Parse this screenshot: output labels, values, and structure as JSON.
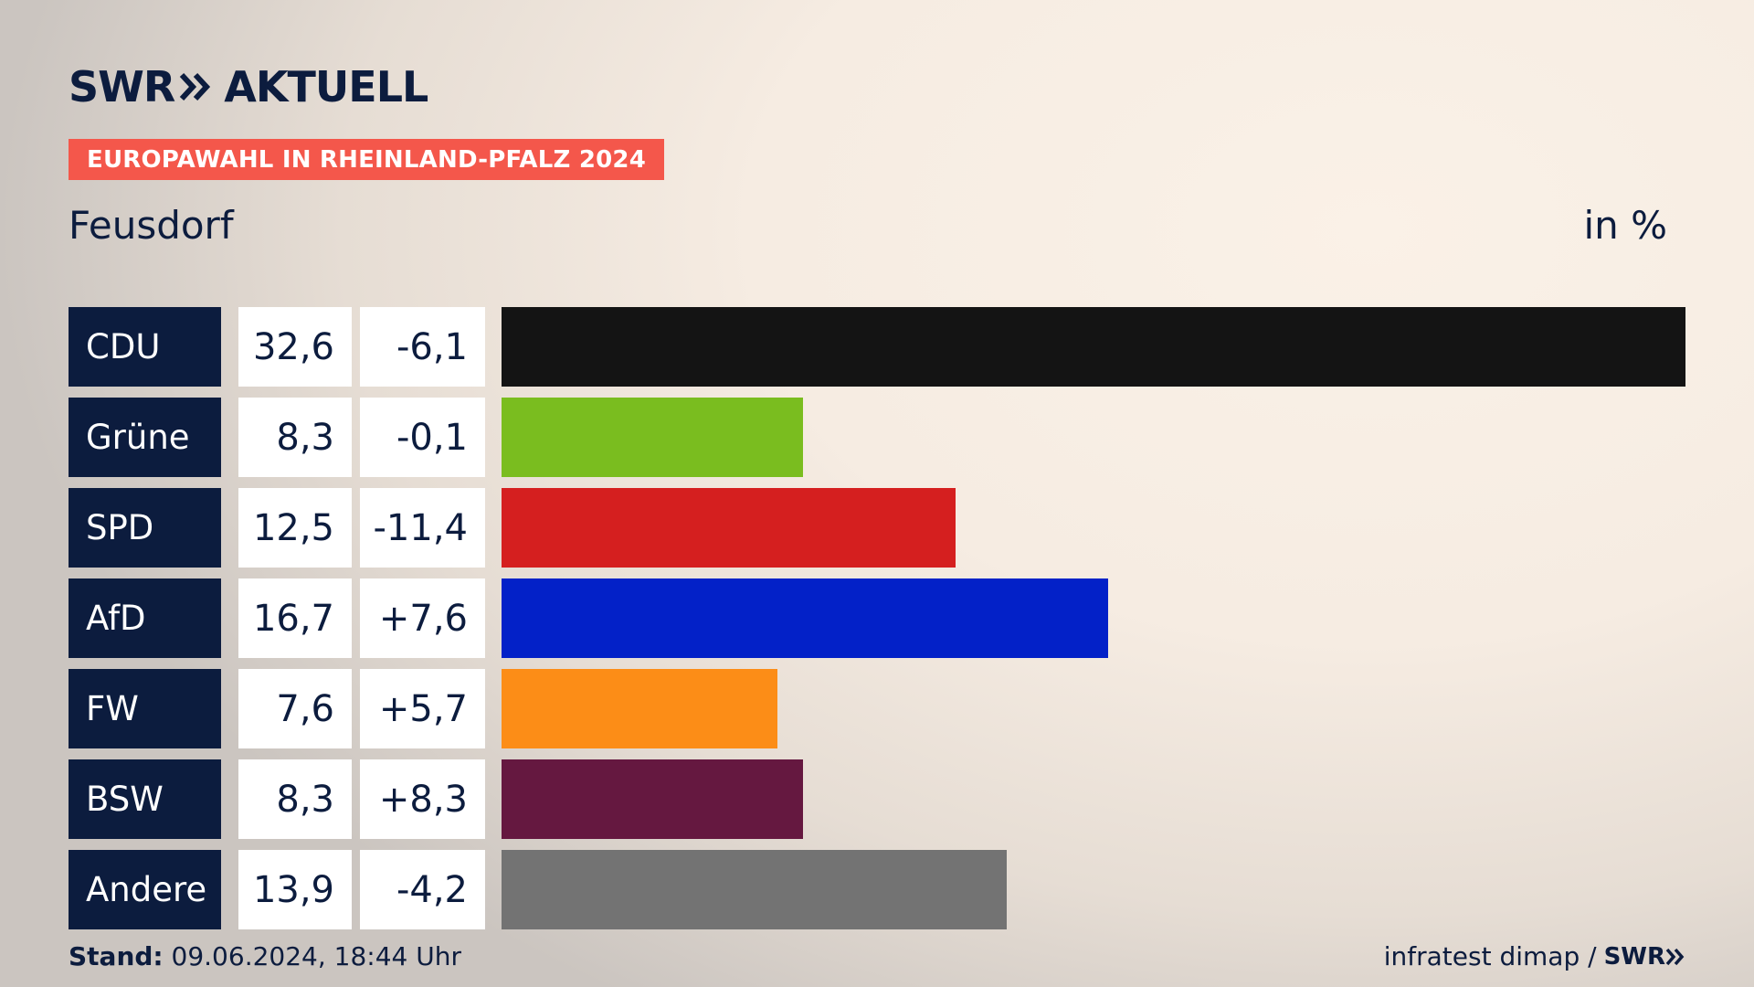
{
  "header": {
    "logo_text_left": "SWR",
    "logo_text_right": "AKTUELL",
    "badge": "EUROPAWAHL IN RHEINLAND-PFALZ 2024",
    "region": "Feusdorf",
    "unit": "in %"
  },
  "footer": {
    "stand_label": "Stand:",
    "stand_value": "09.06.2024, 18:44 Uhr",
    "source": "infratest dimap /",
    "source_logo": "SWR"
  },
  "colors": {
    "navy": "#0c1c3e",
    "badge": "#f4574b"
  },
  "chart_data": {
    "type": "bar",
    "orientation": "horizontal",
    "title": "Feusdorf",
    "unit": "in %",
    "categories": [
      "CDU",
      "Grüne",
      "SPD",
      "AfD",
      "FW",
      "BSW",
      "Andere"
    ],
    "values": [
      32.6,
      8.3,
      12.5,
      16.7,
      7.6,
      8.3,
      13.9
    ],
    "values_label": [
      "32,6",
      "8,3",
      "12,5",
      "16,7",
      "7,6",
      "8,3",
      "13,9"
    ],
    "changes": [
      -6.1,
      -0.1,
      -11.4,
      7.6,
      5.7,
      8.3,
      -4.2
    ],
    "changes_label": [
      "-6,1",
      "-0,1",
      "-11,4",
      "+7,6",
      "+5,7",
      "+8,3",
      "-4,2"
    ],
    "colors": [
      "#141414",
      "#7abd1f",
      "#d51f1f",
      "#0321c8",
      "#fc8d17",
      "#651840",
      "#737373"
    ],
    "xlim": [
      0,
      32.6
    ]
  }
}
